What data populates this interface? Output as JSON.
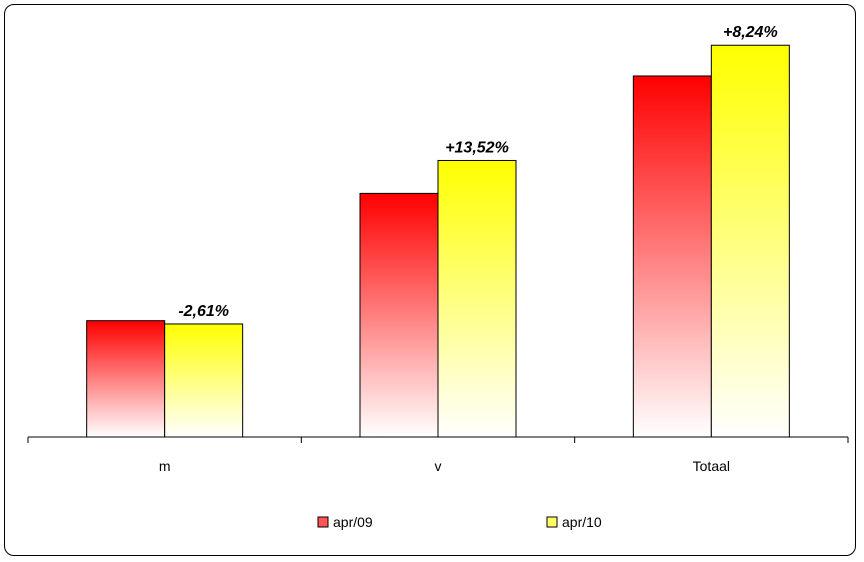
{
  "chart_data": {
    "type": "bar",
    "categories": [
      "m",
      "v",
      "Totaal"
    ],
    "series": [
      {
        "name": "apr/09",
        "color": "#ff0000",
        "values": [
          106,
          222,
          329
        ]
      },
      {
        "name": "apr/10",
        "color": "#ffff00",
        "values": [
          103,
          252,
          357
        ]
      }
    ],
    "annotations": [
      "-2,61%",
      "+13,52%",
      "+8,24%"
    ],
    "ylim": [
      0,
      380
    ],
    "grid": false,
    "legend": "bottom"
  }
}
